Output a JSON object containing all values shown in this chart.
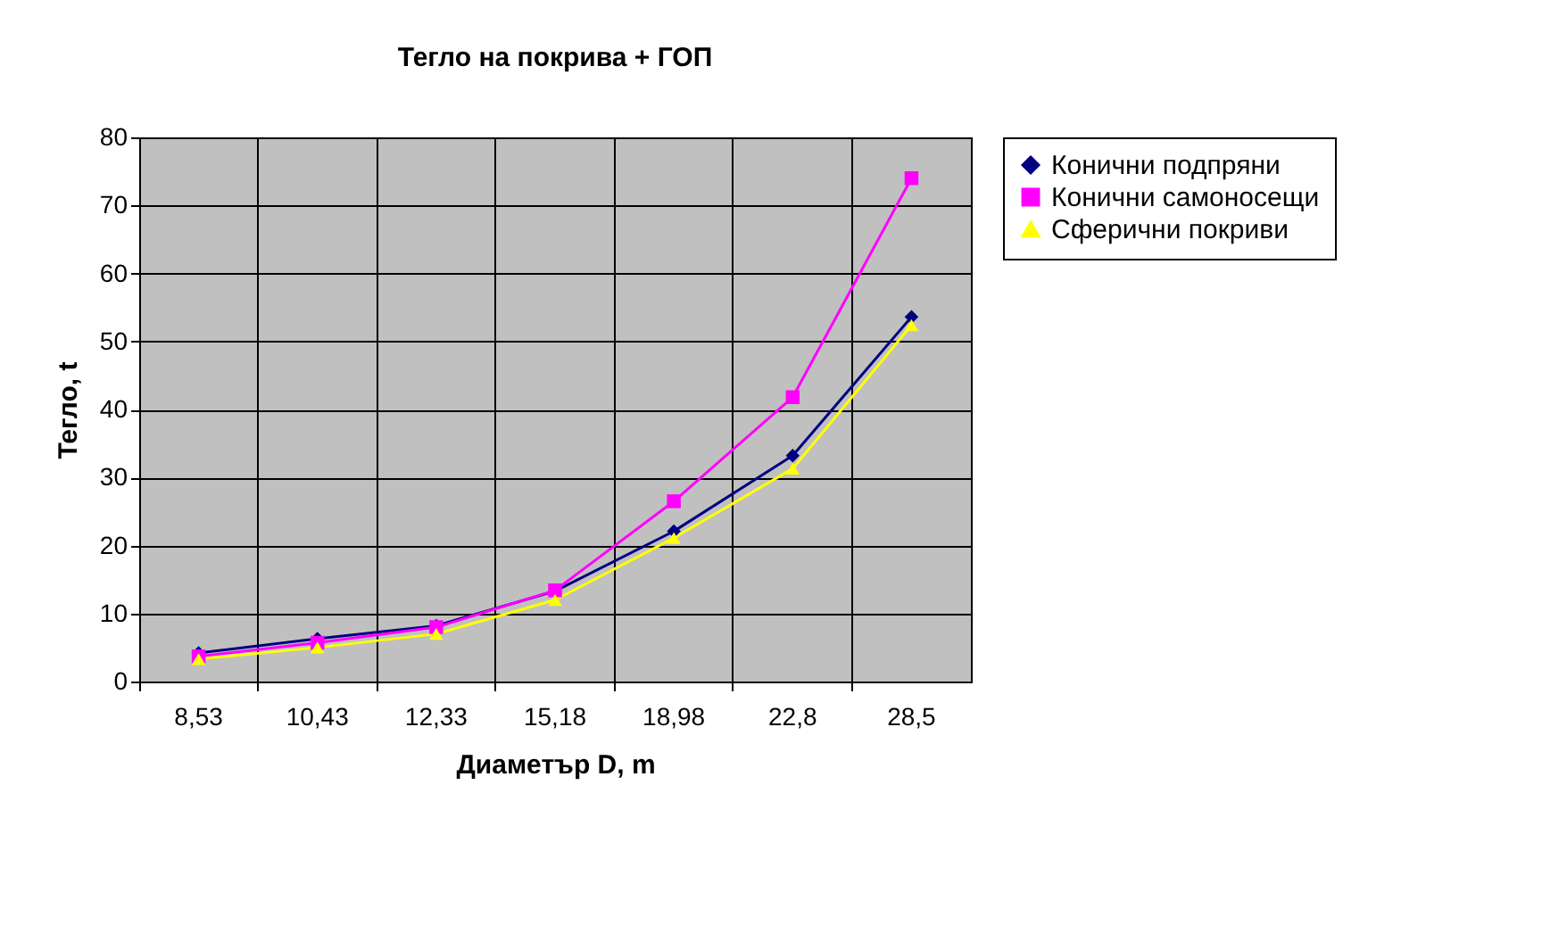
{
  "chart_data": {
    "type": "line",
    "title": "Тегло на покрива + ГОП",
    "xlabel": "Диаметър D, m",
    "ylabel": "Тегло, t",
    "categories": [
      "8,53",
      "10,43",
      "12,33",
      "15,18",
      "18,98",
      "22,8",
      "28,5"
    ],
    "series": [
      {
        "name": "Конични подпряни",
        "color": "#000080",
        "marker": "diamond",
        "values": [
          4.2,
          6.3,
          8.2,
          13.3,
          22.1,
          33.2,
          53.6
        ]
      },
      {
        "name": "Конични самоносещи",
        "color": "#ff00ff",
        "marker": "square",
        "values": [
          3.7,
          5.7,
          8.0,
          13.4,
          26.5,
          41.8,
          74.0
        ]
      },
      {
        "name": "Сферични покриви",
        "color": "#ffff00",
        "marker": "triangle",
        "values": [
          3.3,
          5.0,
          7.0,
          12.0,
          21.1,
          31.3,
          52.4
        ]
      }
    ],
    "ylim": [
      0,
      80
    ],
    "yticks": [
      0,
      10,
      20,
      30,
      40,
      50,
      60,
      70,
      80
    ],
    "grid": true,
    "legend": "right",
    "line_style": "solid"
  }
}
